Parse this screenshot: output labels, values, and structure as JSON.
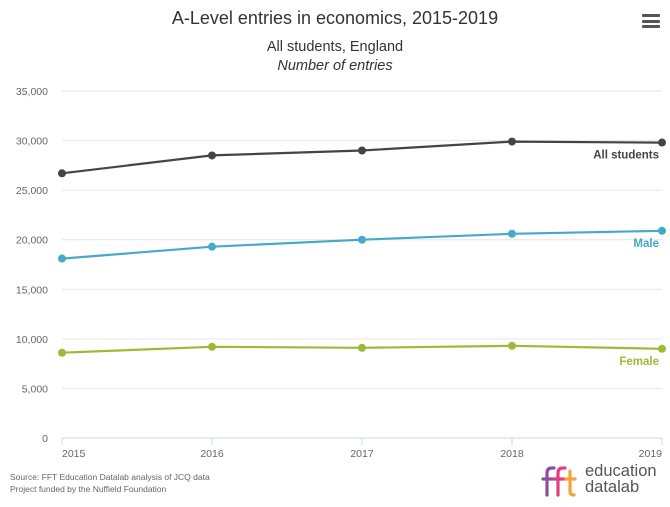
{
  "header": {
    "title": "A-Level entries in economics, 2015-2019",
    "subtitle_line1": "All students, England",
    "subtitle_line2": "Number of entries"
  },
  "menu": {
    "icon": "hamburger-menu-icon"
  },
  "chart_data": {
    "type": "line",
    "title": "A-Level entries in economics, 2015-2019",
    "subtitle": "All students, England — Number of entries",
    "xlabel": "",
    "ylabel": "",
    "x": [
      2015,
      2016,
      2017,
      2018,
      2019
    ],
    "x_tick_labels": [
      "2015",
      "2016",
      "2017",
      "2018",
      "2019"
    ],
    "ylim": [
      0,
      35000
    ],
    "y_ticks": [
      0,
      5000,
      10000,
      15000,
      20000,
      25000,
      30000,
      35000
    ],
    "y_tick_labels": [
      "0",
      "5,000",
      "10,000",
      "15,000",
      "20,000",
      "25,000",
      "30,000",
      "35,000"
    ],
    "grid": "horizontal",
    "legend": "none (series labelled at line ends)",
    "series": [
      {
        "name": "All students",
        "color": "#444444",
        "values": [
          26700,
          28500,
          29000,
          29900,
          29800
        ]
      },
      {
        "name": "Male",
        "color": "#45a9c9",
        "values": [
          18100,
          19300,
          20000,
          20600,
          20900
        ]
      },
      {
        "name": "Female",
        "color": "#9cbb35",
        "values": [
          8600,
          9200,
          9100,
          9300,
          9000
        ]
      }
    ]
  },
  "footer": {
    "source_line1": "Source: FFT Education Datalab analysis of JCQ data",
    "source_line2": "Project funded by the Nuffield Foundation"
  },
  "brand": {
    "logo_mark": "fft",
    "word1": "education",
    "word2": "datalab",
    "colors": [
      "#8b4fa1",
      "#e0417e",
      "#f2a43a",
      "#4bb2c8"
    ]
  }
}
